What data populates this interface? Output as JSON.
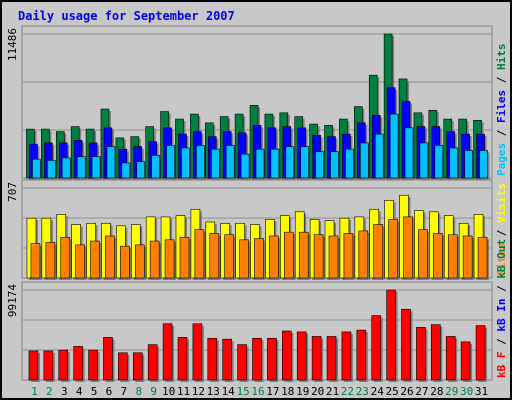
{
  "chart_data": [
    {
      "type": "bar",
      "title": "Daily usage for September 2007",
      "categories": [
        "1",
        "2",
        "3",
        "4",
        "5",
        "6",
        "7",
        "8",
        "9",
        "10",
        "11",
        "12",
        "13",
        "14",
        "15",
        "16",
        "17",
        "18",
        "19",
        "20",
        "21",
        "22",
        "23",
        "24",
        "25",
        "26",
        "27",
        "28",
        "29",
        "30",
        "31"
      ],
      "weekend_days": [
        "1",
        "2",
        "8",
        "9",
        "15",
        "16",
        "22",
        "23",
        "29",
        "30"
      ],
      "panel": "top",
      "ymax_label": "11486",
      "ylim": [
        0,
        11486
      ],
      "series": [
        {
          "name": "Hits",
          "color": "#008040",
          "values": [
            3900,
            3900,
            3700,
            4100,
            3900,
            5500,
            3200,
            3300,
            4100,
            5300,
            4700,
            5100,
            4400,
            4900,
            5100,
            5800,
            5100,
            5200,
            4900,
            4300,
            4200,
            4700,
            5700,
            8200,
            11486,
            7900,
            5200,
            5400,
            4700,
            4700,
            4600
          ]
        },
        {
          "name": "Files",
          "color": "#0000ff",
          "values": [
            2700,
            2800,
            2800,
            3000,
            2800,
            4000,
            2300,
            2500,
            2900,
            4000,
            3500,
            3700,
            3300,
            3700,
            3600,
            4200,
            4000,
            4100,
            4000,
            3400,
            3300,
            3500,
            4400,
            5000,
            7200,
            6100,
            4100,
            4100,
            3700,
            3500,
            3500
          ]
        },
        {
          "name": "Pages",
          "color": "#00c0ff",
          "values": [
            1500,
            1400,
            1600,
            1700,
            1700,
            2500,
            1200,
            1300,
            1800,
            2600,
            2400,
            2600,
            2300,
            2600,
            1900,
            2300,
            2300,
            2500,
            2500,
            2100,
            2100,
            2300,
            2800,
            3500,
            5100,
            4000,
            2800,
            2600,
            2400,
            2200,
            2200
          ]
        }
      ],
      "legend": [
        "Pages",
        "Files",
        "Hits"
      ]
    },
    {
      "type": "bar",
      "panel": "middle",
      "ymax_label": "707",
      "ylim": [
        0,
        707
      ],
      "series": [
        {
          "name": "Visits",
          "color": "#ffff00",
          "values": [
            470,
            470,
            500,
            420,
            430,
            430,
            410,
            420,
            480,
            480,
            490,
            540,
            440,
            430,
            430,
            420,
            460,
            490,
            520,
            460,
            450,
            470,
            480,
            540,
            610,
            650,
            530,
            520,
            490,
            430,
            500
          ]
        },
        {
          "name": "Sites",
          "color": "#ff8000",
          "values": [
            270,
            280,
            320,
            260,
            290,
            330,
            250,
            260,
            290,
            300,
            320,
            380,
            350,
            340,
            300,
            310,
            330,
            360,
            360,
            340,
            330,
            350,
            370,
            420,
            460,
            480,
            380,
            350,
            340,
            330,
            320
          ]
        }
      ],
      "legend": [
        "Sites",
        "Visits"
      ]
    },
    {
      "type": "bar",
      "panel": "bottom",
      "ymax_label": "99174",
      "ylim": [
        0,
        99174
      ],
      "series": [
        {
          "name": "kB F",
          "color": "#ff0000",
          "values": [
            32000,
            32000,
            33000,
            37000,
            33000,
            47000,
            30000,
            30000,
            39000,
            62000,
            47000,
            62000,
            46000,
            45000,
            39000,
            46000,
            46000,
            54000,
            53000,
            48000,
            48000,
            53000,
            55000,
            71000,
            99174,
            78000,
            58000,
            61000,
            48000,
            42000,
            60000
          ]
        }
      ],
      "legend": [
        "kB F",
        "kB In",
        "kB Out"
      ],
      "legend_colors": [
        "#ff0000",
        "#0000ff",
        "#008040"
      ]
    }
  ]
}
